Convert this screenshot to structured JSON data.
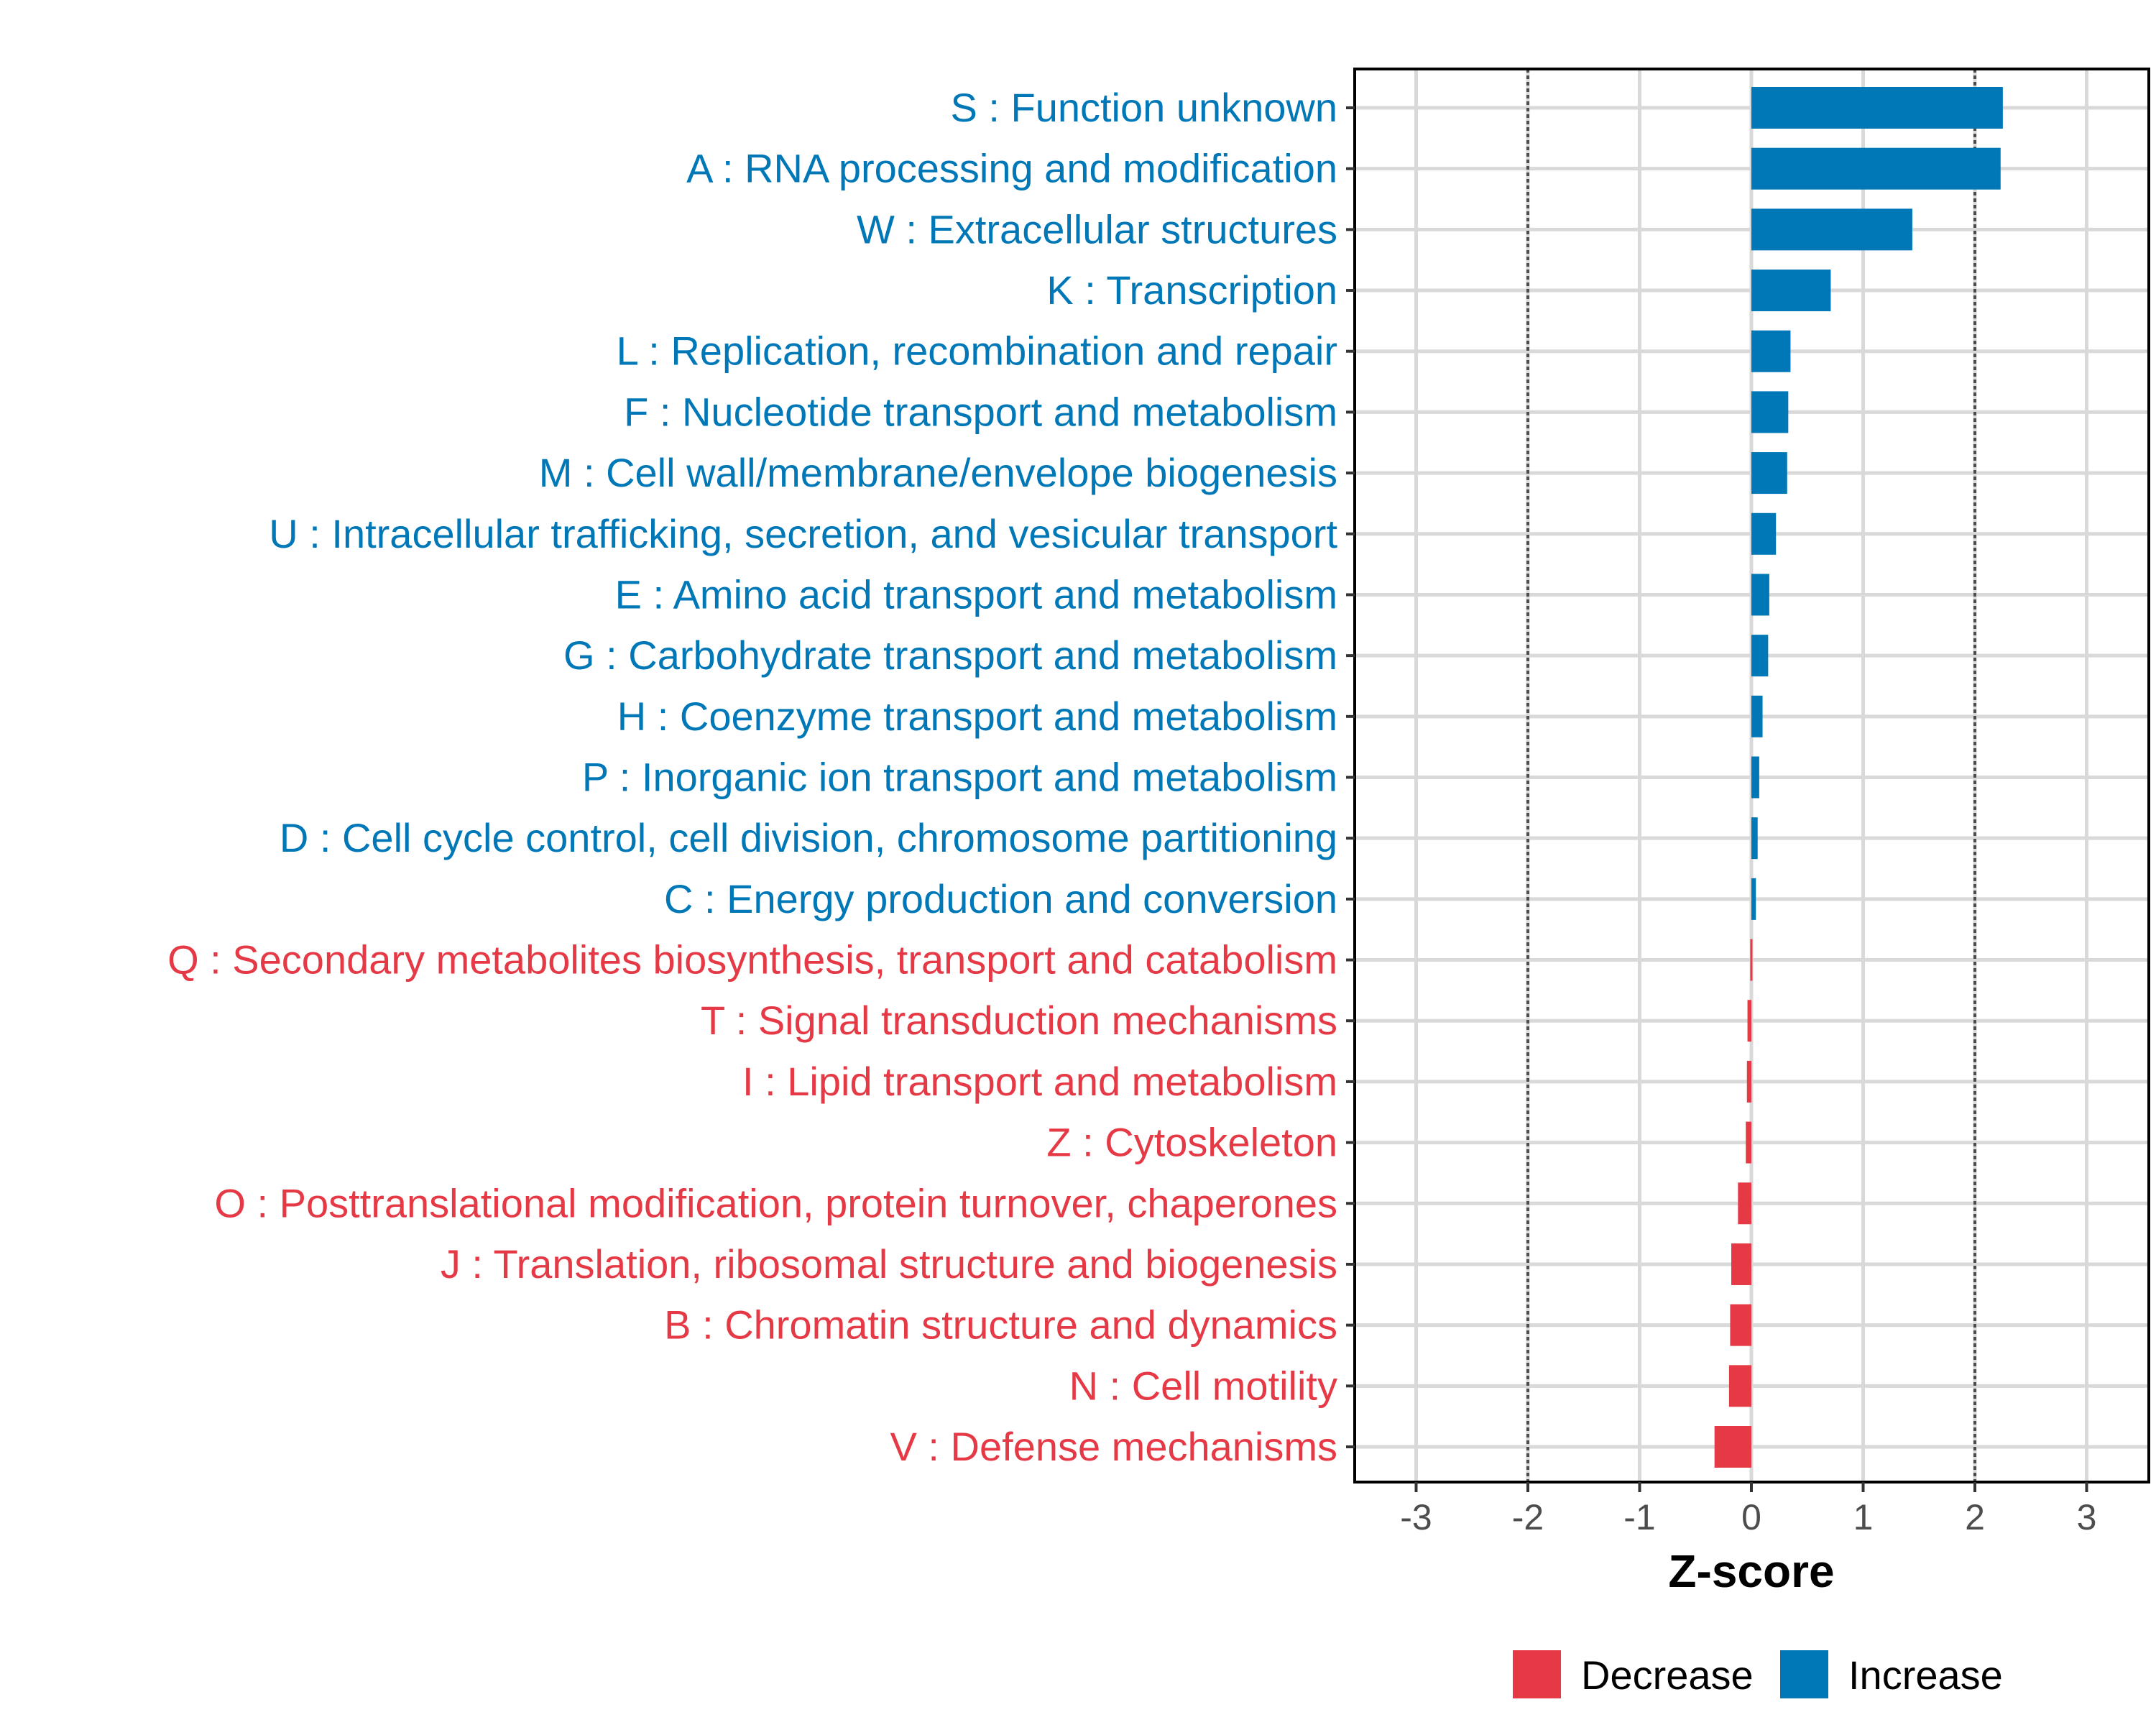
{
  "chart_data": {
    "type": "bar",
    "orientation": "horizontal",
    "title": "",
    "xlabel": "Z-score",
    "ylabel": "",
    "xlim": [
      -3.55,
      3.55
    ],
    "xticks": [
      -3,
      -2,
      -1,
      0,
      1,
      2,
      3
    ],
    "xtick_labels": [
      "-3",
      "-2",
      "-1",
      "0",
      "1",
      "2",
      "3"
    ],
    "reference_lines": [
      -2,
      2
    ],
    "grid": true,
    "categories": [
      "S : Function unknown",
      "A : RNA processing and modification",
      "W : Extracellular structures",
      "K : Transcription",
      "L : Replication, recombination and repair",
      "F : Nucleotide transport and metabolism",
      "M : Cell wall/membrane/envelope biogenesis",
      "U : Intracellular trafficking, secretion, and vesicular transport",
      "E : Amino acid transport and metabolism",
      "G : Carbohydrate transport and metabolism",
      "H : Coenzyme transport and metabolism",
      "P : Inorganic ion transport and metabolism",
      "D : Cell cycle control, cell division, chromosome partitioning",
      "C : Energy production and conversion",
      "Q : Secondary metabolites biosynthesis, transport and catabolism",
      "T : Signal transduction mechanisms",
      "I : Lipid transport and metabolism",
      "Z : Cytoskeleton",
      "O : Posttranslational modification, protein turnover, chaperones",
      "J : Translation, ribosomal structure and biogenesis",
      "B : Chromatin structure and dynamics",
      "N : Cell motility",
      "V : Defense mechanisms"
    ],
    "values": [
      2.25,
      2.23,
      1.44,
      0.71,
      0.35,
      0.33,
      0.32,
      0.22,
      0.16,
      0.15,
      0.1,
      0.07,
      0.056,
      0.04,
      -0.01,
      -0.035,
      -0.04,
      -0.05,
      -0.12,
      -0.18,
      -0.19,
      -0.2,
      -0.33
    ],
    "legend": {
      "placement": "bottom",
      "entries": [
        {
          "label": "Decrease",
          "color": "#E63946"
        },
        {
          "label": "Increase",
          "color": "#0077B6"
        }
      ]
    },
    "colors": {
      "decrease": "#E63946",
      "increase": "#0077B6",
      "grid": "#d9d9d9",
      "reference": "#4d4d4d"
    }
  }
}
